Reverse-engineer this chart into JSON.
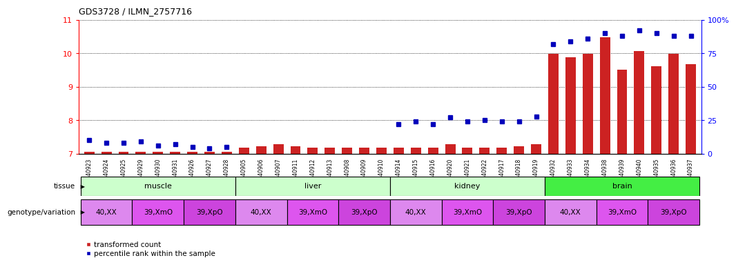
{
  "title": "GDS3728 / ILMN_2757716",
  "samples": [
    "GSM340923",
    "GSM340924",
    "GSM340925",
    "GSM340929",
    "GSM340930",
    "GSM340931",
    "GSM340926",
    "GSM340927",
    "GSM340928",
    "GSM340905",
    "GSM340906",
    "GSM340907",
    "GSM340911",
    "GSM340912",
    "GSM340913",
    "GSM340908",
    "GSM340909",
    "GSM340910",
    "GSM340914",
    "GSM340915",
    "GSM340916",
    "GSM340920",
    "GSM340921",
    "GSM340922",
    "GSM340917",
    "GSM340918",
    "GSM340919",
    "GSM340932",
    "GSM340933",
    "GSM340934",
    "GSM340938",
    "GSM340939",
    "GSM340940",
    "GSM340935",
    "GSM340936",
    "GSM340937"
  ],
  "transformed_count": [
    7.05,
    7.05,
    7.05,
    7.05,
    7.05,
    7.05,
    7.05,
    7.05,
    7.05,
    7.18,
    7.22,
    7.28,
    7.22,
    7.18,
    7.18,
    7.18,
    7.18,
    7.18,
    7.18,
    7.18,
    7.18,
    7.28,
    7.18,
    7.18,
    7.18,
    7.22,
    7.28,
    9.98,
    9.88,
    9.98,
    10.48,
    9.52,
    10.08,
    9.62,
    9.98,
    9.68
  ],
  "percentile_rank": [
    10,
    8,
    8,
    9,
    6,
    7,
    5,
    4,
    5,
    null,
    null,
    null,
    null,
    null,
    null,
    null,
    null,
    null,
    22,
    24,
    22,
    27,
    24,
    25,
    24,
    24,
    28,
    82,
    84,
    86,
    90,
    88,
    92,
    90,
    88,
    88
  ],
  "tissue_groups": [
    {
      "label": "muscle",
      "start": 0,
      "end": 8,
      "color": "#ccffcc"
    },
    {
      "label": "liver",
      "start": 9,
      "end": 17,
      "color": "#ccffcc"
    },
    {
      "label": "kidney",
      "start": 18,
      "end": 26,
      "color": "#ccffcc"
    },
    {
      "label": "brain",
      "start": 27,
      "end": 35,
      "color": "#44ee44"
    }
  ],
  "genotype_groups": [
    {
      "label": "40,XX",
      "start": 0,
      "end": 2,
      "color": "#dd88ee"
    },
    {
      "label": "39,XmO",
      "start": 3,
      "end": 5,
      "color": "#dd55ee"
    },
    {
      "label": "39,XpO",
      "start": 6,
      "end": 8,
      "color": "#cc44dd"
    },
    {
      "label": "40,XX",
      "start": 9,
      "end": 11,
      "color": "#dd88ee"
    },
    {
      "label": "39,XmO",
      "start": 12,
      "end": 14,
      "color": "#dd55ee"
    },
    {
      "label": "39,XpO",
      "start": 15,
      "end": 17,
      "color": "#cc44dd"
    },
    {
      "label": "40,XX",
      "start": 18,
      "end": 20,
      "color": "#dd88ee"
    },
    {
      "label": "39,XmO",
      "start": 21,
      "end": 23,
      "color": "#dd55ee"
    },
    {
      "label": "39,XpO",
      "start": 24,
      "end": 26,
      "color": "#cc44dd"
    },
    {
      "label": "40,XX",
      "start": 27,
      "end": 29,
      "color": "#dd88ee"
    },
    {
      "label": "39,XmO",
      "start": 30,
      "end": 32,
      "color": "#dd55ee"
    },
    {
      "label": "39,XpO",
      "start": 33,
      "end": 35,
      "color": "#cc44dd"
    }
  ],
  "ylim_left": [
    7,
    11
  ],
  "ylim_right": [
    0,
    100
  ],
  "yticks_left": [
    7,
    8,
    9,
    10,
    11
  ],
  "yticks_right": [
    0,
    25,
    50,
    75,
    100
  ],
  "ytick_labels_right": [
    "0",
    "25",
    "50",
    "75",
    "100%"
  ],
  "bar_color": "#cc2222",
  "dot_color": "#0000bb",
  "bar_baseline": 7.0,
  "background_color": "#ffffff"
}
